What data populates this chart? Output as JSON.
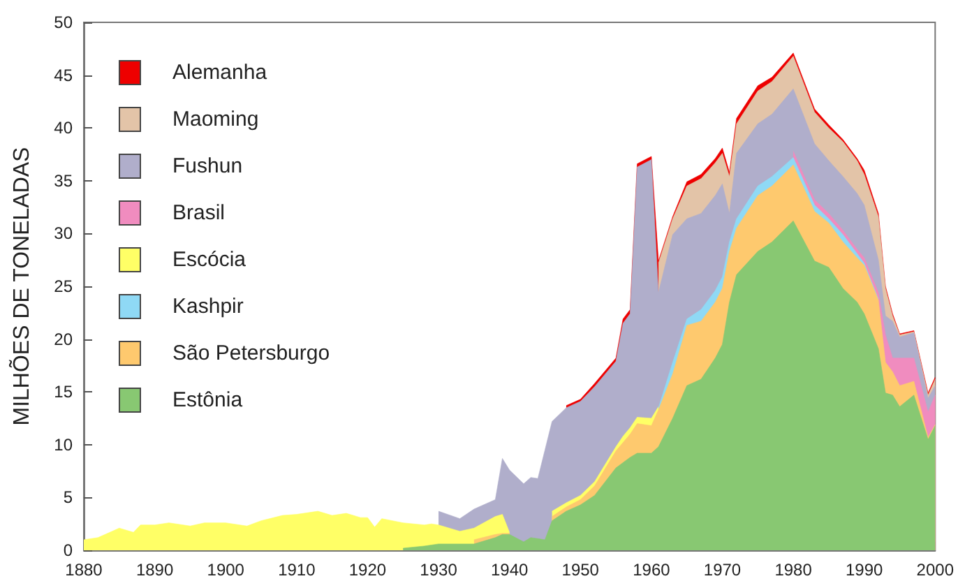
{
  "chart_data": {
    "type": "area",
    "stacked": true,
    "ylabel": "MILHÕES DE TONELADAS",
    "x": [
      1880,
      1882,
      1885,
      1887,
      1888,
      1890,
      1892,
      1895,
      1897,
      1900,
      1903,
      1905,
      1908,
      1910,
      1913,
      1915,
      1917,
      1919,
      1920,
      1921,
      1922,
      1925,
      1928,
      1929,
      1930,
      1933,
      1935,
      1938,
      1939,
      1940,
      1942,
      1943,
      1944,
      1945,
      1946,
      1948,
      1950,
      1952,
      1955,
      1956,
      1957,
      1958,
      1960,
      1961,
      1963,
      1965,
      1967,
      1969,
      1970,
      1971,
      1972,
      1975,
      1977,
      1980,
      1983,
      1985,
      1987,
      1989,
      1990,
      1992,
      1993,
      1994,
      1995,
      1997,
      1999,
      2000
    ],
    "series": [
      {
        "name": "Estônia",
        "color": "#88c872",
        "values": [
          null,
          null,
          null,
          null,
          null,
          null,
          null,
          null,
          null,
          null,
          null,
          null,
          null,
          null,
          null,
          null,
          null,
          null,
          null,
          null,
          null,
          0.2,
          0.4,
          0.5,
          0.6,
          0.6,
          0.6,
          1.2,
          1.5,
          1.5,
          0.8,
          1.2,
          1.1,
          1.0,
          2.8,
          3.7,
          4.3,
          5.2,
          7.8,
          8.3,
          8.8,
          9.2,
          9.2,
          9.8,
          12.5,
          15.6,
          16.2,
          18.2,
          19.5,
          23.5,
          26.1,
          28.3,
          29.2,
          31.2,
          27.4,
          26.8,
          24.8,
          23.5,
          22.4,
          19.1,
          14.9,
          14.7,
          13.6,
          14.7,
          10.5,
          11.8
        ]
      },
      {
        "name": "São Petersburgo",
        "color": "#fec96e",
        "values": [
          null,
          null,
          null,
          null,
          null,
          null,
          null,
          null,
          null,
          null,
          null,
          null,
          null,
          null,
          null,
          null,
          null,
          null,
          null,
          null,
          null,
          null,
          null,
          null,
          null,
          null,
          0.4,
          0.3,
          0.1,
          0.1,
          null,
          null,
          null,
          null,
          0.4,
          0.4,
          0.5,
          0.9,
          1.6,
          1.9,
          2.2,
          2.8,
          2.6,
          3.5,
          4.2,
          5.7,
          5.5,
          5.3,
          5.3,
          4.8,
          4.4,
          5.3,
          5.3,
          5.3,
          4.7,
          4.2,
          4.4,
          4.2,
          4.6,
          4.6,
          2.9,
          2.2,
          2.0,
          1.3,
          0.2,
          0.1
        ]
      },
      {
        "name": "Kashpir",
        "color": "#8fd9f5",
        "values": [
          null,
          null,
          null,
          null,
          null,
          null,
          null,
          null,
          null,
          null,
          null,
          null,
          null,
          null,
          null,
          null,
          null,
          null,
          null,
          null,
          null,
          null,
          null,
          null,
          null,
          null,
          null,
          null,
          null,
          null,
          null,
          null,
          null,
          null,
          null,
          null,
          null,
          null,
          null,
          null,
          null,
          null,
          null,
          0.2,
          1.1,
          0.6,
          1.1,
          1.1,
          1.1,
          0.9,
          0.9,
          0.9,
          0.9,
          0.7,
          0.6,
          0.4,
          0.7,
          0.4,
          0.2,
          0.1,
          null,
          null,
          null,
          null,
          null,
          null
        ]
      },
      {
        "name": "Escócia",
        "color": "#ffff66",
        "values": [
          1.0,
          1.2,
          2.1,
          1.7,
          2.4,
          2.4,
          2.6,
          2.3,
          2.6,
          2.6,
          2.3,
          2.8,
          3.3,
          3.4,
          3.7,
          3.3,
          3.5,
          3.1,
          3.1,
          2.2,
          3.0,
          2.4,
          2.0,
          2.0,
          1.8,
          1.2,
          1.1,
          1.7,
          1.8,
          0.1,
          null,
          null,
          null,
          null,
          0.5,
          0.4,
          0.4,
          0.4,
          0.4,
          0.6,
          0.6,
          0.6,
          0.7,
          0.1,
          null,
          null,
          null,
          null,
          null,
          null,
          null,
          null,
          null,
          null,
          null,
          null,
          null,
          null,
          null,
          null,
          null,
          null,
          null,
          null,
          null,
          null
        ]
      },
      {
        "name": "Brasil",
        "color": "#f08cbf",
        "values": [
          null,
          null,
          null,
          null,
          null,
          null,
          null,
          null,
          null,
          null,
          null,
          null,
          null,
          null,
          null,
          null,
          null,
          null,
          null,
          null,
          null,
          null,
          null,
          null,
          null,
          null,
          null,
          null,
          null,
          null,
          null,
          null,
          null,
          null,
          null,
          null,
          null,
          null,
          null,
          null,
          null,
          null,
          null,
          null,
          null,
          null,
          null,
          null,
          null,
          null,
          null,
          null,
          null,
          0.6,
          0.5,
          0.5,
          0.4,
          0.4,
          0.5,
          0.6,
          2.6,
          1.3,
          2.6,
          2.2,
          2.4,
          2.8
        ]
      },
      {
        "name": "Fushun",
        "color": "#b0aecb",
        "values": [
          null,
          null,
          null,
          null,
          null,
          null,
          null,
          null,
          null,
          null,
          null,
          null,
          null,
          null,
          null,
          null,
          null,
          null,
          null,
          null,
          null,
          null,
          null,
          null,
          1.3,
          1.2,
          1.8,
          1.6,
          5.3,
          5.9,
          5.5,
          5.7,
          5.7,
          8.5,
          8.5,
          9.0,
          8.9,
          9.0,
          8.1,
          10.7,
          10.8,
          23.7,
          24.5,
          10.8,
          12.1,
          9.5,
          9.1,
          9.0,
          8.8,
          2.7,
          6.2,
          5.9,
          5.9,
          5.9,
          5.3,
          5.0,
          5.1,
          5.3,
          5.0,
          3.1,
          1.8,
          3.5,
          2.0,
          2.4,
          1.3,
          0.9
        ]
      },
      {
        "name": "Maoming",
        "color": "#e3c4a8",
        "values": [
          null,
          null,
          null,
          null,
          null,
          null,
          null,
          null,
          null,
          null,
          null,
          null,
          null,
          null,
          null,
          null,
          null,
          null,
          null,
          null,
          null,
          null,
          null,
          null,
          null,
          null,
          null,
          null,
          null,
          null,
          null,
          null,
          null,
          null,
          null,
          null,
          null,
          null,
          null,
          null,
          null,
          null,
          null,
          2.8,
          1.5,
          3.1,
          3.3,
          3.1,
          2.9,
          3.5,
          2.8,
          3.1,
          3.1,
          3.1,
          3.0,
          3.1,
          3.3,
          3.1,
          2.9,
          4.1,
          2.6,
          0.5,
          0.2,
          0.1,
          0.3,
          0.6
        ]
      },
      {
        "name": "Alemanha",
        "color": "#ee0000",
        "values": [
          null,
          null,
          null,
          null,
          null,
          null,
          null,
          null,
          null,
          null,
          null,
          null,
          null,
          null,
          null,
          null,
          null,
          null,
          null,
          null,
          null,
          null,
          null,
          null,
          null,
          null,
          null,
          null,
          null,
          null,
          null,
          null,
          null,
          null,
          null,
          0.2,
          0.2,
          0.3,
          0.3,
          0.4,
          0.4,
          0.3,
          0.3,
          0.2,
          0.2,
          0.4,
          0.4,
          0.4,
          0.5,
          0.4,
          0.5,
          0.5,
          0.4,
          0.3,
          0.3,
          0.3,
          0.2,
          0.2,
          0.4,
          0.3,
          0.2,
          0.2,
          0.1,
          0.1,
          0.2,
          0.2
        ]
      }
    ],
    "xlim": [
      1880,
      2000
    ],
    "xticks": [
      1880,
      1890,
      1900,
      1910,
      1920,
      1930,
      1940,
      1950,
      1960,
      1970,
      1980,
      1990,
      2000
    ],
    "ylim": [
      0,
      50
    ],
    "yticks": [
      0,
      5,
      10,
      15,
      20,
      25,
      30,
      35,
      40,
      45,
      50
    ],
    "grid": false,
    "legend": "top left"
  }
}
